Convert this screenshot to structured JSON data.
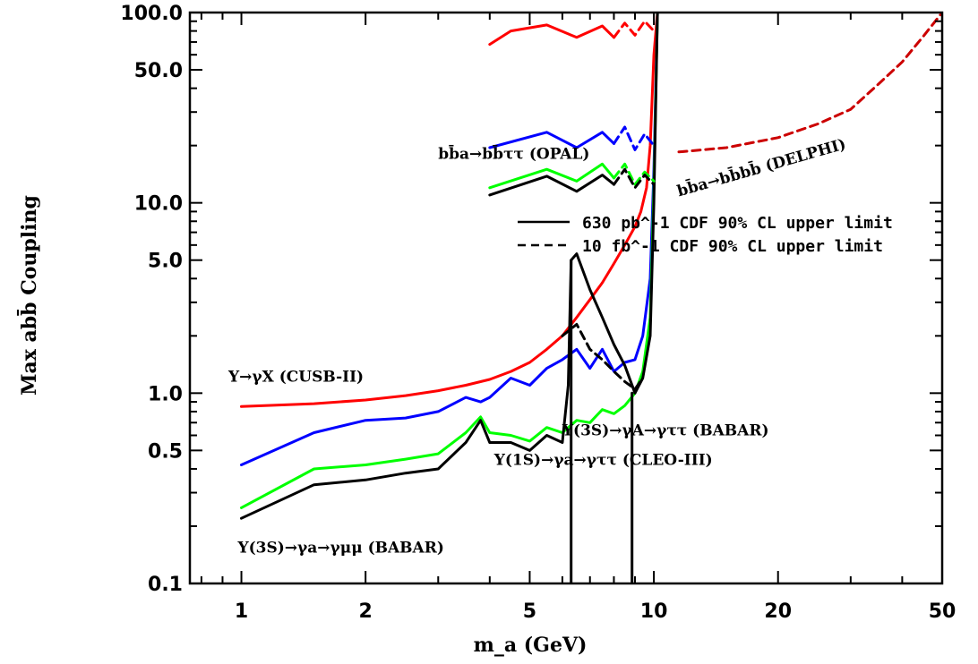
{
  "chart_data": {
    "type": "line",
    "xlabel": "m_a (GeV)",
    "ylabel": "Max abb̄ Coupling",
    "xscale": "log",
    "yscale": "log",
    "xlim": [
      0.75,
      50
    ],
    "ylim": [
      0.1,
      100
    ],
    "x_ticks": [
      {
        "value": 1,
        "label": "1"
      },
      {
        "value": 2,
        "label": "2"
      },
      {
        "value": 5,
        "label": "5"
      },
      {
        "value": 10,
        "label": "10"
      },
      {
        "value": 20,
        "label": "20"
      },
      {
        "value": 50,
        "label": "50"
      }
    ],
    "y_ticks": [
      {
        "value": 0.1,
        "label": "0.1"
      },
      {
        "value": 0.5,
        "label": "0.5"
      },
      {
        "value": 1,
        "label": "1.0"
      },
      {
        "value": 5,
        "label": "5.0"
      },
      {
        "value": 10,
        "label": "10.0"
      },
      {
        "value": 50,
        "label": "50.0"
      },
      {
        "value": 100,
        "label": "100.0"
      }
    ],
    "legend": [
      {
        "style": "solid",
        "label": "630 pb^-1 CDF 90% CL upper limit"
      },
      {
        "style": "dashed",
        "label": "10 fb^-1 CDF 90% CL upper limit"
      }
    ],
    "annotations": [
      {
        "text": "Υ→γX (CUSB-II)",
        "x": 0.93,
        "y": 1.15
      },
      {
        "text": "Υ(3S)→γa→γμμ (BABAR)",
        "x": 0.98,
        "y": 0.145
      },
      {
        "text": "Υ(1S)→γa→γττ (CLEO-III)",
        "x": 4.1,
        "y": 0.42
      },
      {
        "text": "Υ(3S)→γA→γττ (BABAR)",
        "x": 6.0,
        "y": 0.6
      },
      {
        "text": "bb̄a→bb̄ττ (OPAL)",
        "x": 3.0,
        "y": 17.0
      },
      {
        "text": "bb̄a→bb̄bb̄ (DELPHI)",
        "x": 11.5,
        "y": 10.8,
        "rotate": -16
      }
    ],
    "series": [
      {
        "color": "#ff0000",
        "style": "solid",
        "x": [
          1.0,
          1.5,
          2.0,
          2.5,
          3.0,
          3.5,
          4.0,
          4.5,
          5.0,
          5.5,
          6.0,
          6.5,
          7.0,
          7.5,
          8.0,
          8.5,
          9.0,
          9.3,
          9.6,
          9.8,
          10.0,
          10.2
        ],
        "y": [
          0.85,
          0.88,
          0.92,
          0.97,
          1.03,
          1.1,
          1.18,
          1.3,
          1.45,
          1.7,
          2.0,
          2.5,
          3.1,
          3.8,
          4.8,
          6.0,
          7.5,
          9.0,
          12.0,
          20.0,
          60.0,
          100.0
        ]
      },
      {
        "color": "#0000ff",
        "style": "solid",
        "x": [
          1.0,
          1.5,
          2.0,
          2.5,
          3.0,
          3.5,
          3.8,
          4.0,
          4.5,
          5.0,
          5.5,
          6.0,
          6.5,
          7.0,
          7.5,
          8.0,
          8.5,
          9.0,
          9.4,
          9.8,
          10.0,
          10.2
        ],
        "y": [
          0.42,
          0.62,
          0.72,
          0.74,
          0.8,
          0.95,
          0.9,
          0.95,
          1.2,
          1.1,
          1.35,
          1.5,
          1.7,
          1.35,
          1.7,
          1.3,
          1.45,
          1.5,
          2.0,
          4.0,
          15.0,
          100.0
        ]
      },
      {
        "color": "#00ff00",
        "style": "solid",
        "x": [
          1.0,
          1.5,
          2.0,
          2.5,
          3.0,
          3.5,
          3.8,
          4.0,
          4.5,
          5.0,
          5.5,
          6.0,
          6.5,
          7.0,
          7.5,
          8.0,
          8.5,
          9.0,
          9.4,
          9.8,
          10.0,
          10.2
        ],
        "y": [
          0.25,
          0.4,
          0.42,
          0.45,
          0.48,
          0.62,
          0.75,
          0.62,
          0.6,
          0.56,
          0.66,
          0.62,
          0.72,
          0.7,
          0.82,
          0.78,
          0.86,
          1.0,
          1.3,
          2.5,
          12.0,
          100.0
        ]
      },
      {
        "color": "#000000",
        "style": "solid",
        "x": [
          1.0,
          1.5,
          2.0,
          2.5,
          3.0,
          3.5,
          3.8,
          4.0,
          4.5,
          5.0,
          5.5,
          6.0,
          6.2,
          6.3,
          6.5,
          7.0,
          7.5,
          8.0,
          8.5,
          9.0,
          9.4,
          9.8,
          10.0,
          10.2
        ],
        "y": [
          0.22,
          0.33,
          0.35,
          0.38,
          0.4,
          0.55,
          0.72,
          0.55,
          0.55,
          0.5,
          0.6,
          0.55,
          1.1,
          5.0,
          5.4,
          3.5,
          2.5,
          1.8,
          1.4,
          1.0,
          1.2,
          2.0,
          10.0,
          100.0
        ]
      },
      {
        "color": "#ff0000",
        "style": "solid",
        "x": [
          4.0,
          4.5,
          5.5,
          6.5,
          7.5,
          8.0
        ],
        "y": [
          68.0,
          80.0,
          86.0,
          74.0,
          85.0,
          74.0
        ]
      },
      {
        "color": "#ff0000",
        "style": "dashed",
        "x": [
          8.0,
          8.5,
          9.0,
          9.5,
          10.0
        ],
        "y": [
          74.0,
          88.0,
          76.0,
          90.0,
          80.0
        ]
      },
      {
        "color": "#0000ff",
        "style": "solid",
        "x": [
          4.0,
          5.5,
          6.5,
          7.5,
          8.0
        ],
        "y": [
          19.5,
          23.5,
          19.5,
          23.5,
          20.5
        ]
      },
      {
        "color": "#0000ff",
        "style": "dashed",
        "x": [
          8.0,
          8.5,
          9.0,
          9.5,
          10.0
        ],
        "y": [
          20.5,
          25.0,
          19.0,
          23.0,
          20.0
        ]
      },
      {
        "color": "#00ff00",
        "style": "solid",
        "x": [
          4.0,
          5.5,
          6.5,
          7.5,
          8.0
        ],
        "y": [
          12.0,
          15.0,
          13.0,
          16.0,
          13.5
        ]
      },
      {
        "color": "#00ff00",
        "style": "dashed",
        "x": [
          8.0,
          8.5,
          9.0,
          9.5,
          10.0
        ],
        "y": [
          13.5,
          16.0,
          12.5,
          14.5,
          13.0
        ]
      },
      {
        "color": "#000000",
        "style": "solid",
        "x": [
          4.0,
          5.5,
          6.5,
          7.5,
          8.0
        ],
        "y": [
          11.0,
          13.8,
          11.5,
          14.0,
          12.5
        ]
      },
      {
        "color": "#000000",
        "style": "dashed",
        "x": [
          8.0,
          8.5,
          9.0,
          9.5,
          10.0
        ],
        "y": [
          12.5,
          15.0,
          12.0,
          14.0,
          12.5
        ]
      },
      {
        "color": "#cc0000",
        "style": "dashed",
        "x": [
          11.5,
          15.0,
          20.0,
          25.0,
          30.0,
          35.0,
          40.0,
          45.0,
          50.0
        ],
        "y": [
          18.5,
          19.5,
          22.0,
          26.0,
          31.0,
          42.0,
          55.0,
          75.0,
          100.0
        ]
      },
      {
        "color": "#000000",
        "style": "dashed",
        "x": [
          6.0,
          6.5,
          7.0,
          7.5,
          8.0,
          8.5,
          9.0,
          9.4
        ],
        "y": [
          2.0,
          2.3,
          1.7,
          1.5,
          1.3,
          1.15,
          1.05,
          1.2
        ]
      },
      {
        "color": "#000000",
        "style": "solid",
        "x": [
          6.3,
          6.3
        ],
        "y": [
          0.1,
          5.0
        ]
      },
      {
        "color": "#000000",
        "style": "solid",
        "x": [
          8.85,
          8.85
        ],
        "y": [
          0.1,
          1.0
        ]
      }
    ]
  }
}
